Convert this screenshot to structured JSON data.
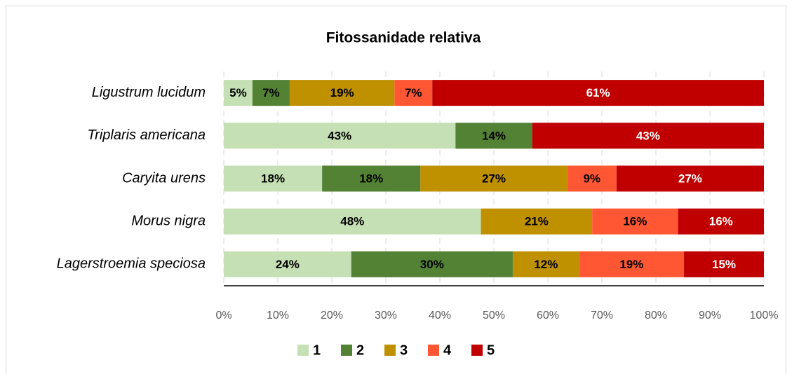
{
  "chart_data": {
    "type": "stacked-barh",
    "title": "Fitossanidade relativa",
    "categories": [
      "Ligustrum lucidum",
      "Triplaris americana",
      "Caryita urens",
      "Morus nigra",
      "Lagerstroemia speciosa"
    ],
    "series": [
      {
        "name": "1",
        "color": "#c5e0b4",
        "values": [
          5.3,
          42.9,
          18.2,
          47.6,
          23.6
        ],
        "value_labels": [
          "5%",
          "43%",
          "18%",
          "48%",
          "24%"
        ]
      },
      {
        "name": "2",
        "color": "#548235",
        "values": [
          6.9,
          14.2,
          18.2,
          0,
          29.9
        ],
        "value_labels": [
          "7%",
          "14%",
          "18%",
          null,
          "30%"
        ]
      },
      {
        "name": "3",
        "color": "#bf9000",
        "values": [
          19.4,
          0,
          27.2,
          20.6,
          12.3
        ],
        "value_labels": [
          "19%",
          null,
          "27%",
          "21%",
          "12%"
        ]
      },
      {
        "name": "4",
        "color": "#ff5733",
        "values": [
          7.0,
          0,
          9.1,
          15.9,
          19.4
        ],
        "value_labels": [
          "7%",
          null,
          "9%",
          "16%",
          "19%"
        ]
      },
      {
        "name": "5",
        "color": "#c00000",
        "values": [
          61.4,
          42.9,
          27.3,
          15.9,
          14.8
        ],
        "value_labels": [
          "61%",
          "43%",
          "27%",
          "16%",
          "15%"
        ]
      }
    ],
    "xlim": [
      0,
      100
    ],
    "xticks": [
      {
        "value": 0,
        "label": "0%"
      },
      {
        "value": 10,
        "label": "10%"
      },
      {
        "value": 20,
        "label": "20%"
      },
      {
        "value": 30,
        "label": "30%"
      },
      {
        "value": 40,
        "label": "40%"
      },
      {
        "value": 50,
        "label": "50%"
      },
      {
        "value": 60,
        "label": "60%"
      },
      {
        "value": 70,
        "label": "70%"
      },
      {
        "value": 80,
        "label": "80%"
      },
      {
        "value": 90,
        "label": "90%"
      },
      {
        "value": 100,
        "label": "100%"
      }
    ],
    "grid": true,
    "legend": "bottom"
  }
}
